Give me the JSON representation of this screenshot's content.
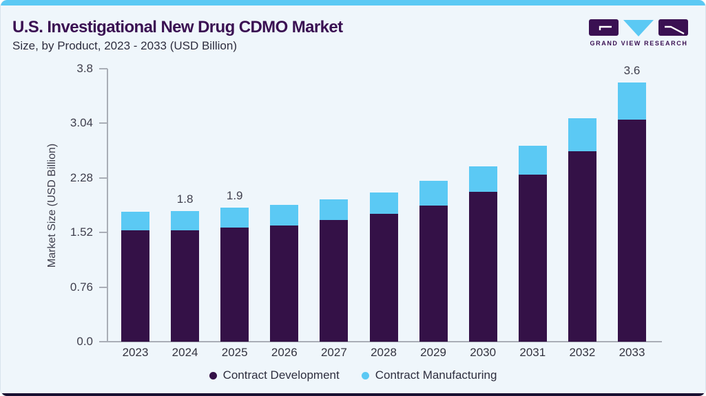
{
  "header": {
    "title": "U.S. Investigational New Drug CDMO Market",
    "subtitle": "Size, by Product, 2023 - 2033 (USD Billion)"
  },
  "logo": {
    "text": "GRAND VIEW RESEARCH"
  },
  "colors": {
    "accent_top_bar": "#5BC9F4",
    "accent_bottom_bar": "#191031",
    "card_background": "#EFF6FB",
    "title_text": "#3A1052",
    "body_text": "#2E2E3F",
    "axis_line": "#A9AEB6",
    "contract_development": "#341147",
    "contract_manufacturing": "#5BC9F4"
  },
  "chart_data": {
    "type": "bar",
    "stacked": true,
    "title": "U.S. Investigational New Drug CDMO Market Size, by Product, 2023 - 2033 (USD Billion)",
    "xlabel": "",
    "ylabel": "Market Size (USD Billion)",
    "ylim": [
      0,
      3.8
    ],
    "grid": false,
    "legend_position": "bottom",
    "categories": [
      "2023",
      "2024",
      "2025",
      "2026",
      "2027",
      "2028",
      "2029",
      "2030",
      "2031",
      "2032",
      "2033"
    ],
    "series": [
      {
        "name": "Contract Development",
        "color": "#341147",
        "values": [
          1.55,
          1.55,
          1.59,
          1.62,
          1.69,
          1.78,
          1.9,
          2.09,
          2.33,
          2.65,
          3.09
        ]
      },
      {
        "name": "Contract Manufacturing",
        "color": "#5BC9F4",
        "values": [
          0.26,
          0.27,
          0.28,
          0.29,
          0.29,
          0.3,
          0.34,
          0.35,
          0.4,
          0.46,
          0.52
        ]
      }
    ],
    "totals": [
      1.81,
      1.82,
      1.87,
      1.91,
      1.98,
      2.08,
      2.24,
      2.44,
      2.73,
      3.11,
      3.61
    ],
    "bar_labels": [
      {
        "category": "2024",
        "text": "1.8"
      },
      {
        "category": "2025",
        "text": "1.9"
      },
      {
        "category": "2033",
        "text": "3.6"
      }
    ],
    "yticks": [
      {
        "value": 0,
        "label": "0.0"
      },
      {
        "value": 0.76,
        "label": "0.76"
      },
      {
        "value": 1.52,
        "label": "1.52"
      },
      {
        "value": 2.28,
        "label": "2.28"
      },
      {
        "value": 3.04,
        "label": "3.04"
      },
      {
        "value": 3.8,
        "label": "3.8"
      }
    ]
  }
}
